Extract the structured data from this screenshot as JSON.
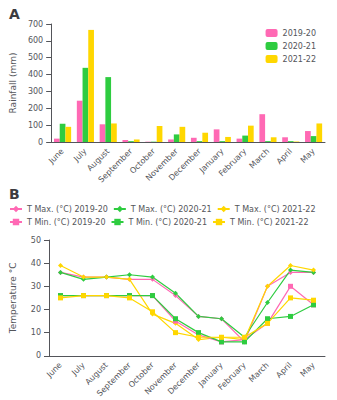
{
  "chart_data": [
    {
      "type": "bar",
      "title": "A",
      "categories": [
        "June",
        "July",
        "August",
        "September",
        "October",
        "November",
        "December",
        "January",
        "February",
        "March",
        "April",
        "May"
      ],
      "series": [
        {
          "name": "2019-20",
          "color": "#FF69B4",
          "values": [
            20,
            245,
            105,
            12,
            2,
            15,
            25,
            75,
            20,
            165,
            28,
            65
          ]
        },
        {
          "name": "2020-21",
          "color": "#2ECC40",
          "values": [
            108,
            440,
            385,
            5,
            2,
            45,
            5,
            5,
            38,
            5,
            5,
            35
          ]
        },
        {
          "name": "2021-22",
          "color": "#FFD700",
          "values": [
            90,
            665,
            110,
            15,
            95,
            90,
            55,
            30,
            97,
            28,
            3,
            110
          ]
        }
      ],
      "ylabel": "Rainfall (mm)",
      "ylim": [
        0,
        700
      ],
      "yticks": [
        0,
        100,
        200,
        300,
        400,
        500,
        600,
        700
      ],
      "grid": false,
      "legend": "upper right"
    },
    {
      "type": "line",
      "title": "B",
      "categories": [
        "June",
        "July",
        "August",
        "September",
        "October",
        "November",
        "December",
        "January",
        "February",
        "March",
        "April",
        "May"
      ],
      "series": [
        {
          "name": "T Max. (°C) 2019-20",
          "color": "#FF69B4",
          "marker": "diamond",
          "line_style": "solid",
          "values": [
            36,
            34,
            34,
            33,
            33,
            26,
            17,
            16,
            6,
            30,
            36,
            36
          ]
        },
        {
          "name": "T Max. (°C) 2020-21",
          "color": "#2ECC40",
          "marker": "diamond",
          "line_style": "solid",
          "values": [
            36,
            33,
            34,
            35,
            34,
            27,
            17,
            16,
            8,
            23,
            37,
            36
          ]
        },
        {
          "name": "T Max. (°C) 2021-22",
          "color": "#FFD700",
          "marker": "diamond",
          "line_style": "solid",
          "values": [
            39,
            34,
            34,
            33,
            18,
            14,
            7,
            8,
            7,
            30,
            39,
            37
          ]
        },
        {
          "name": "T Min. (°C) 2019-20",
          "color": "#FF69B4",
          "marker": "square",
          "line_style": "solid",
          "values": [
            26,
            26,
            26,
            26,
            26,
            15,
            9,
            6,
            7,
            14,
            30,
            22
          ]
        },
        {
          "name": "T Min. (°C) 2020-21",
          "color": "#2ECC40",
          "marker": "square",
          "line_style": "solid",
          "values": [
            26,
            26,
            26,
            26,
            26,
            16,
            10,
            6,
            6,
            16,
            17,
            22
          ]
        },
        {
          "name": "T Min. (°C) 2021-22",
          "color": "#FFD700",
          "marker": "square",
          "line_style": "solid",
          "values": [
            25,
            26,
            26,
            25,
            19,
            10,
            8,
            8,
            8,
            14,
            25,
            24
          ]
        }
      ],
      "ylabel": "Temperature °C",
      "ylim": [
        0,
        50
      ],
      "yticks": [
        0,
        10,
        20,
        30,
        40,
        50
      ],
      "grid": false,
      "legend": "top"
    }
  ]
}
